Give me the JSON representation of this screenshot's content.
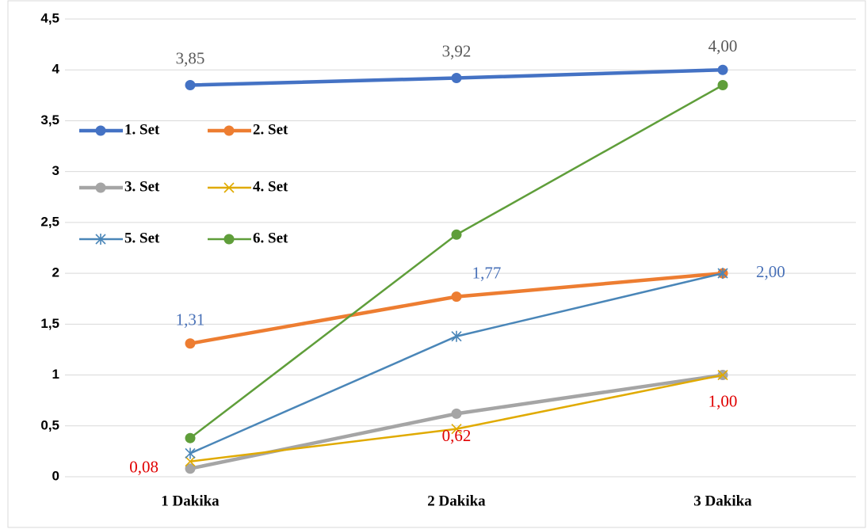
{
  "chart_data": {
    "type": "line",
    "categories": [
      "1 Dakika",
      "2 Dakika",
      "3 Dakika"
    ],
    "ylim": [
      0,
      4.5
    ],
    "yticks": [
      0,
      {
        "value": 0.5,
        "label": "0,5"
      },
      1,
      {
        "value": 1.5,
        "label": "1,5"
      },
      2,
      {
        "value": 2.5,
        "label": "2,5"
      },
      3,
      {
        "value": 3.5,
        "label": "3,5"
      },
      4,
      {
        "value": 4.5,
        "label": "4,5"
      }
    ],
    "grid": true,
    "legend": "left",
    "series": [
      {
        "name": "1. Set",
        "color": "#4472c4",
        "marker": "circle",
        "values": [
          3.85,
          3.92,
          4.0
        ],
        "value_labels": [
          "3,85",
          "3,92",
          "4,00"
        ],
        "label_color": "#595959"
      },
      {
        "name": "2. Set",
        "color": "#ed7d31",
        "marker": "circle",
        "values": [
          1.31,
          1.77,
          2.0
        ],
        "value_labels": [
          "1,31",
          "1,77",
          "2,00"
        ],
        "label_color": "#4a72b8"
      },
      {
        "name": "3. Set",
        "color": "#a5a5a5",
        "marker": "circle",
        "values": [
          0.08,
          0.62,
          1.0
        ],
        "value_labels": [
          "0,08",
          "0,62",
          "1,00"
        ],
        "label_color": "#e00000"
      },
      {
        "name": "4. Set",
        "color": "#e0aa00",
        "marker": "x",
        "values": [
          0.15,
          0.47,
          1.0
        ]
      },
      {
        "name": "5. Set",
        "color": "#4a86b8",
        "marker": "star",
        "values": [
          0.23,
          1.38,
          2.0
        ]
      },
      {
        "name": "6. Set",
        "color": "#5f9e3a",
        "marker": "circle",
        "values": [
          0.38,
          2.38,
          3.85
        ]
      }
    ]
  }
}
